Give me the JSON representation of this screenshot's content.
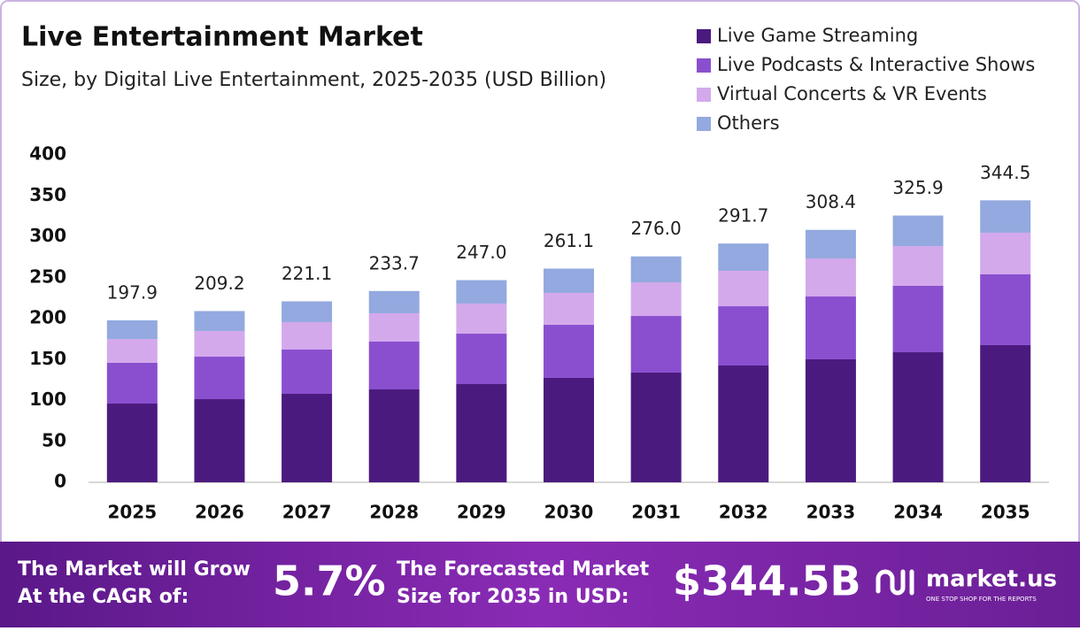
{
  "chart_data": {
    "type": "stacked_bar",
    "title": "Live Entertainment Market",
    "subtitle": "Size, by Digital Live Entertainment, 2025-2035 (USD Billion)",
    "categories": [
      "2025",
      "2026",
      "2027",
      "2028",
      "2029",
      "2030",
      "2031",
      "2032",
      "2033",
      "2034",
      "2035"
    ],
    "series": [
      {
        "name": "Live Game Streaming",
        "color": "#4b1a7f",
        "values": [
          96.2,
          101.6,
          108.1,
          113.5,
          120.0,
          127.6,
          134.1,
          142.7,
          150.3,
          158.9,
          167.6
        ]
      },
      {
        "name": "Live Podcasts & Interactive Shows",
        "color": "#8a4fcf",
        "values": [
          49.8,
          51.9,
          54.1,
          58.4,
          61.6,
          64.8,
          69.1,
          72.4,
          76.7,
          81.1,
          86.5
        ]
      },
      {
        "name": "Virtual Concerts & VR Events",
        "color": "#d3a9ec",
        "values": [
          29.1,
          31.4,
          33.5,
          34.6,
          36.8,
          39.0,
          41.1,
          43.3,
          46.5,
          48.6,
          50.8
        ]
      },
      {
        "name": "Others",
        "color": "#93a9df",
        "values": [
          22.8,
          24.3,
          25.4,
          27.2,
          28.6,
          29.7,
          31.7,
          33.3,
          34.9,
          37.3,
          39.6
        ]
      }
    ],
    "totals": [
      197.9,
      209.2,
      {
        "value": 221.1,
        "label": "221.1"
      },
      233.7,
      {
        "value": 247.0,
        "label": "247.0"
      },
      261.1,
      {
        "value": 276.0,
        "label": "276.0"
      },
      291.7,
      308.4,
      325.9,
      344.5
    ],
    "ylim": [
      0,
      400
    ],
    "yticks": [
      0,
      50,
      100,
      150,
      200,
      250,
      300,
      350,
      400
    ],
    "grid": false,
    "legend": "top-right"
  },
  "footer": {
    "cagr_label": [
      "The Market will Grow",
      "At the CAGR of:"
    ],
    "cagr": "5.7%",
    "forecast_label": [
      "The Forecasted Market",
      "Size for 2035 in USD:"
    ],
    "forecast": "$344.5B",
    "brand": "market.us",
    "tagline": "ONE STOP SHOP FOR THE REPORTS"
  }
}
